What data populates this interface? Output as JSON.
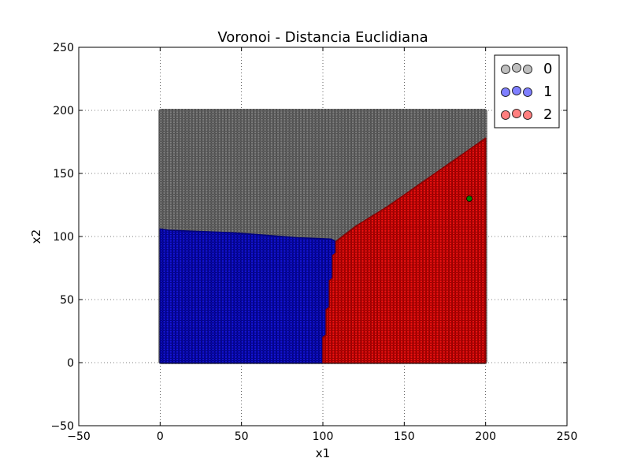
{
  "chart_data": {
    "type": "scatter",
    "title": "Voronoi - Distancia Euclidiana",
    "xlabel": "x1",
    "ylabel": "x2",
    "xlim": [
      -50,
      250
    ],
    "ylim": [
      -50,
      250
    ],
    "xticks": [
      -50,
      0,
      50,
      100,
      150,
      200,
      250
    ],
    "yticks": [
      -50,
      0,
      50,
      100,
      150,
      200,
      250
    ],
    "grid": true,
    "grid_style": "dotted",
    "legend_position": "top-right",
    "grid_range": {
      "x": [
        0,
        200
      ],
      "y": [
        0,
        200
      ],
      "step": 2
    },
    "series": [
      {
        "name": "0",
        "color": "#808080",
        "marker_alpha": 0.5,
        "region": "upper area above the blue and red regions"
      },
      {
        "name": "1",
        "color": "#0000ff",
        "marker_alpha": 0.5,
        "region": "lower-left area, x1 up to about 105, x2 up to about 105"
      },
      {
        "name": "2",
        "color": "#ff0000",
        "marker_alpha": 0.5,
        "region": "right area, x1 from about 105 to 200, below a diagonal from (108, 95) to (200, 178)"
      }
    ],
    "boundaries": {
      "blue_top": [
        [
          0,
          106
        ],
        [
          5,
          105
        ],
        [
          25,
          104
        ],
        [
          45,
          103
        ],
        [
          65,
          101
        ],
        [
          85,
          99
        ],
        [
          105,
          98
        ]
      ],
      "blue_red": [
        [
          100,
          0
        ],
        [
          100,
          20
        ],
        [
          102,
          22
        ],
        [
          102,
          42
        ],
        [
          104,
          44
        ],
        [
          104,
          65
        ],
        [
          106,
          67
        ],
        [
          106,
          85
        ],
        [
          108,
          87
        ],
        [
          108,
          96
        ]
      ],
      "red_top": [
        [
          108,
          96
        ],
        [
          120,
          108
        ],
        [
          140,
          124
        ],
        [
          160,
          142
        ],
        [
          180,
          160
        ],
        [
          200,
          178
        ]
      ]
    },
    "highlight_points": [
      {
        "x": 190,
        "y": 130,
        "color": "#008000"
      }
    ]
  }
}
